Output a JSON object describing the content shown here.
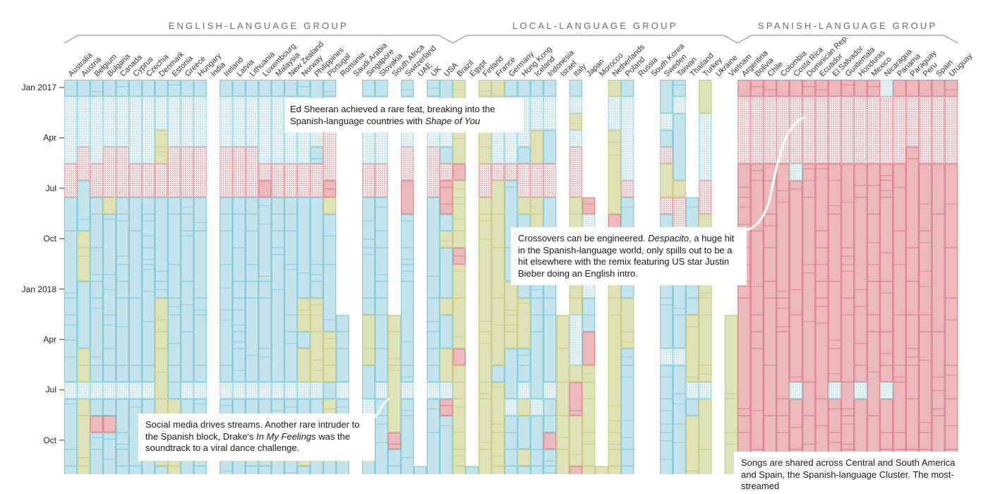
{
  "chart_data": {
    "type": "heatmap",
    "title": "",
    "y_axis": {
      "ticks": [
        "Jan 2017",
        "Apr",
        "Jul",
        "Oct",
        "Jan 2018",
        "Apr",
        "Jul",
        "Oct"
      ],
      "tick_month_index": [
        0,
        3,
        6,
        9,
        12,
        15,
        18,
        21
      ],
      "range": [
        "Jan 2017",
        "Dec 2018"
      ]
    },
    "cell_codes": {
      "b": "#c3e4ec",
      "r": "#ecb9bc",
      "y": "#dfe1b7",
      "h": "#d6eef3",
      "p": "#f1cfd1",
      "_": ""
    },
    "stroke_colors": {
      "b": "#6fc1d5",
      "r": "#d9737b",
      "y": "#c3c46f",
      "h": "#9bd3e0",
      "p": "#e29aa0"
    },
    "groups": [
      {
        "name": "ENGLISH-LANGUAGE GROUP",
        "countries": [
          {
            "name": "Australia",
            "months": "bhhhhppbbbbbbbbbbbhbbbbb"
          },
          {
            "name": "Austria",
            "months": "bhhhppbbbyyybbbbyyhyyyyy"
          },
          {
            "name": "Belgium",
            "months": "bhhhhppbbbbbbbbbbbhbrbbb"
          },
          {
            "name": "Bulgaria",
            "months": "bhhhpppybbbbbbbbbbhbrbbb"
          },
          {
            "name": "Canada",
            "months": "bhhhpppbbbbbbbbbbbhbbbbb"
          },
          {
            "name": "Cyprus",
            "months": "bhhhhppbbbbbbbbbbbhbbbbb"
          },
          {
            "name": "Czechia",
            "months": "bhhhhppbbbbbbbbbbbhbbbbb"
          },
          {
            "name": "Denmark",
            "months": "bhhyyppbbbbbbyyyyyyyyyyb"
          },
          {
            "name": "Estonia",
            "months": "bhhhpppbbbbbbbbbbbbyyyyy"
          },
          {
            "name": "Greece",
            "months": "bhhhpppbbbbbbbbbbbhbbbbb"
          },
          {
            "name": "Hungary",
            "months": "bhhhpppbbbbbbbbbbbhbbbbb"
          },
          {
            "name": "India",
            "months": "________________________"
          },
          {
            "name": "Ireland",
            "months": "bhhhpppbbbbbbbbbbbhbbbbb"
          },
          {
            "name": "Latvia",
            "months": "bhhhpppbbbbbbbbbbbhbbbbb"
          },
          {
            "name": "Lithuania",
            "months": "bhhhpppbbbbbbbbbbbhbbbbb"
          },
          {
            "name": "Luxembourg",
            "months": "bhhhhprbbbbbbbbbbbhbbbbb"
          },
          {
            "name": "Malaysia",
            "months": "bhhhhppbbbbbbbbbbbhbbbbb"
          },
          {
            "name": "New Zealand",
            "months": "bhhhhppbbbbbbbbbbbhbbbbb"
          },
          {
            "name": "Norway",
            "months": "bhhhhppbbbbbbyybyyhbyyyb"
          },
          {
            "name": "Philippines",
            "months": "bbhhbppbbbbbbyyyyyhbbbbb"
          },
          {
            "name": "Portugal",
            "months": "bhhppprybbbbbbbyyybybbbb"
          },
          {
            "name": "Romania",
            "months": "______________bbbbhbbbbb"
          },
          {
            "name": "Saudi Arabia",
            "months": "________________________"
          },
          {
            "name": "Singapore",
            "months": "bhhhhppbbbbbbbyyybbhbbbb"
          },
          {
            "name": "Slovakia",
            "months": "bhhhhppbbbbbbbbbbbhbbbbb"
          },
          {
            "name": "South Africa",
            "months": "______________yyyyyyyrbb"
          },
          {
            "name": "Switzerland",
            "months": "bhhhpprrbbbbbbbbbbhbbbbb"
          },
          {
            "name": "UAE",
            "months": "_______________________b"
          },
          {
            "name": "UK",
            "months": "bhhhpppbbbbbbbbbbbhbbbbb"
          },
          {
            "name": "USA",
            "months": "bbhhbprrbybbbybbyyhrbbbb"
          }
        ]
      },
      {
        "name": "LOCAL-LANGUAGE GROUP",
        "countries": [
          {
            "name": "Brazil",
            "months": "yyyyyryyyyryyyyyryyyyyyy"
          },
          {
            "name": "Egypt",
            "months": "_______________________b"
          },
          {
            "name": "Finland",
            "months": "yhhyyppyyyyyyyyyyyyyyyyy"
          },
          {
            "name": "France",
            "months": "yhhhhpyyyyyyyyyyybyyyyyy"
          },
          {
            "name": "Germany",
            "months": "bhhhhpbbbbbbyyyybbbhbbbb"
          },
          {
            "name": "Hong Kong",
            "months": "bhhhbppybbbbbyyybbhybbyb"
          },
          {
            "name": "Iceland",
            "months": "bhhyyppyyyybbbbbbbbhbbbb"
          },
          {
            "name": "Indonesia",
            "months": "bhhbbppbbyybbbbbbbhbbrbb"
          },
          {
            "name": "Israel",
            "months": "______________yyyyyyyyyy"
          },
          {
            "name": "Italy",
            "months": "bhyhpppyyyyyyyhhhyrryyyr"
          },
          {
            "name": "Japan",
            "months": "_______rhhhhhbbrryyyyyyy"
          },
          {
            "name": "Morocco",
            "months": "_______________________y"
          },
          {
            "name": "Netherlands",
            "months": "yhhyyyyyryyyyyyyyyyyyyyy"
          },
          {
            "name": "Poland",
            "months": "bhhhhhpbbbbbbyyybbbbbbbb"
          },
          {
            "name": "Russia",
            "months": "________________________"
          },
          {
            "name": "South Korea",
            "months": "________________________"
          },
          {
            "name": "Sweden",
            "months": "bbhbpyypbbbbbbbbhbbbbbbb"
          },
          {
            "name": "Taiwan",
            "months": "bhbbbbyppbbbbbbbhbbbbbbb"
          },
          {
            "name": "Thailand",
            "months": "_______bbbbbbbyyyyhbyyyy"
          },
          {
            "name": "Turkey",
            "months": "yyhhhhppyyyyyyyyyyhyyyyy"
          },
          {
            "name": "Ukraine",
            "months": "________________________"
          },
          {
            "name": "Vietnam",
            "months": "______________yyyyyyyyyy"
          }
        ]
      },
      {
        "name": "SPANISH-LANGUAGE GROUP",
        "countries": [
          {
            "name": "Argentina",
            "months": "rpppprrrrrrrrrrrrrrrrrrr"
          },
          {
            "name": "Bolivia",
            "months": "rpppprrrrrrrrrrrrrrrrrrr"
          },
          {
            "name": "Chile",
            "months": "rpppprrrrrrrrrrrrrrrrrrr"
          },
          {
            "name": "Colombia",
            "months": "rpppprrrrrrrrrrrrrrrrrrr"
          },
          {
            "name": "Costa Rica",
            "months": "rpppphrrrrrrrrrrrrhrrrrr"
          },
          {
            "name": "Dominican Rep.",
            "months": "rpppprrrrrrrrrrrrrrrrrrr"
          },
          {
            "name": "Ecuador",
            "months": "rpppprrrrrrrrrrrrrrrrrrr"
          },
          {
            "name": "El Salvador",
            "months": "rpppprrrrrrrrrrrrrhrrrrr"
          },
          {
            "name": "Guatemala",
            "months": "rpppprrrrrrrrrrrrrrrrrrr"
          },
          {
            "name": "Honduras",
            "months": "rpppprrrrrrrrrrrrrhrrrrr"
          },
          {
            "name": "Mexico",
            "months": "rpppprrrrrrrrrrrrrrrrrrr"
          },
          {
            "name": "Nicaragua",
            "months": "hpppprrrrrrrrrrrrrhrrrrr"
          },
          {
            "name": "Panama",
            "months": "rpppprrrrrrrrrrrrrrrrrrr"
          },
          {
            "name": "Paraguay",
            "months": "rppprrrrrrrrrrrrrrrrrrrr"
          },
          {
            "name": "Peru",
            "months": "rpppprrrrrrrrrrrrrrrrrrr"
          },
          {
            "name": "Spain",
            "months": "rpppprrrrrrrrrrrrrrrrrrr"
          },
          {
            "name": "Uruguay",
            "months": "rpppprrrrrrrrrrrrrrrrrrr"
          }
        ]
      }
    ]
  },
  "annotations": {
    "ed_sheeran": {
      "text_before": "Ed Sheeran achieved a rare feat, breaking into the Spanish-language countries with ",
      "italic": "Shape of You",
      "text_after": ""
    },
    "despacito": {
      "text_before": "Crossovers can be engineered. ",
      "italic": "Despacito",
      "text_after": ", a huge hit in the Spanish-language world, only spills out to be a hit elsewhere with the remix featuring US star Justin Bieber doing an English intro."
    },
    "drake": {
      "text_before": "Social media drives streams. Another rare intruder to the Spanish block, Drake's ",
      "italic": "In My Feelings",
      "text_after": " was the soundtrack to a viral dance challenge."
    },
    "spanish_cluster": {
      "text_before": "Songs are shared across Central and South America and Spain, the Spanish-language Cluster. The most-streamed",
      "italic": "",
      "text_after": ""
    }
  }
}
